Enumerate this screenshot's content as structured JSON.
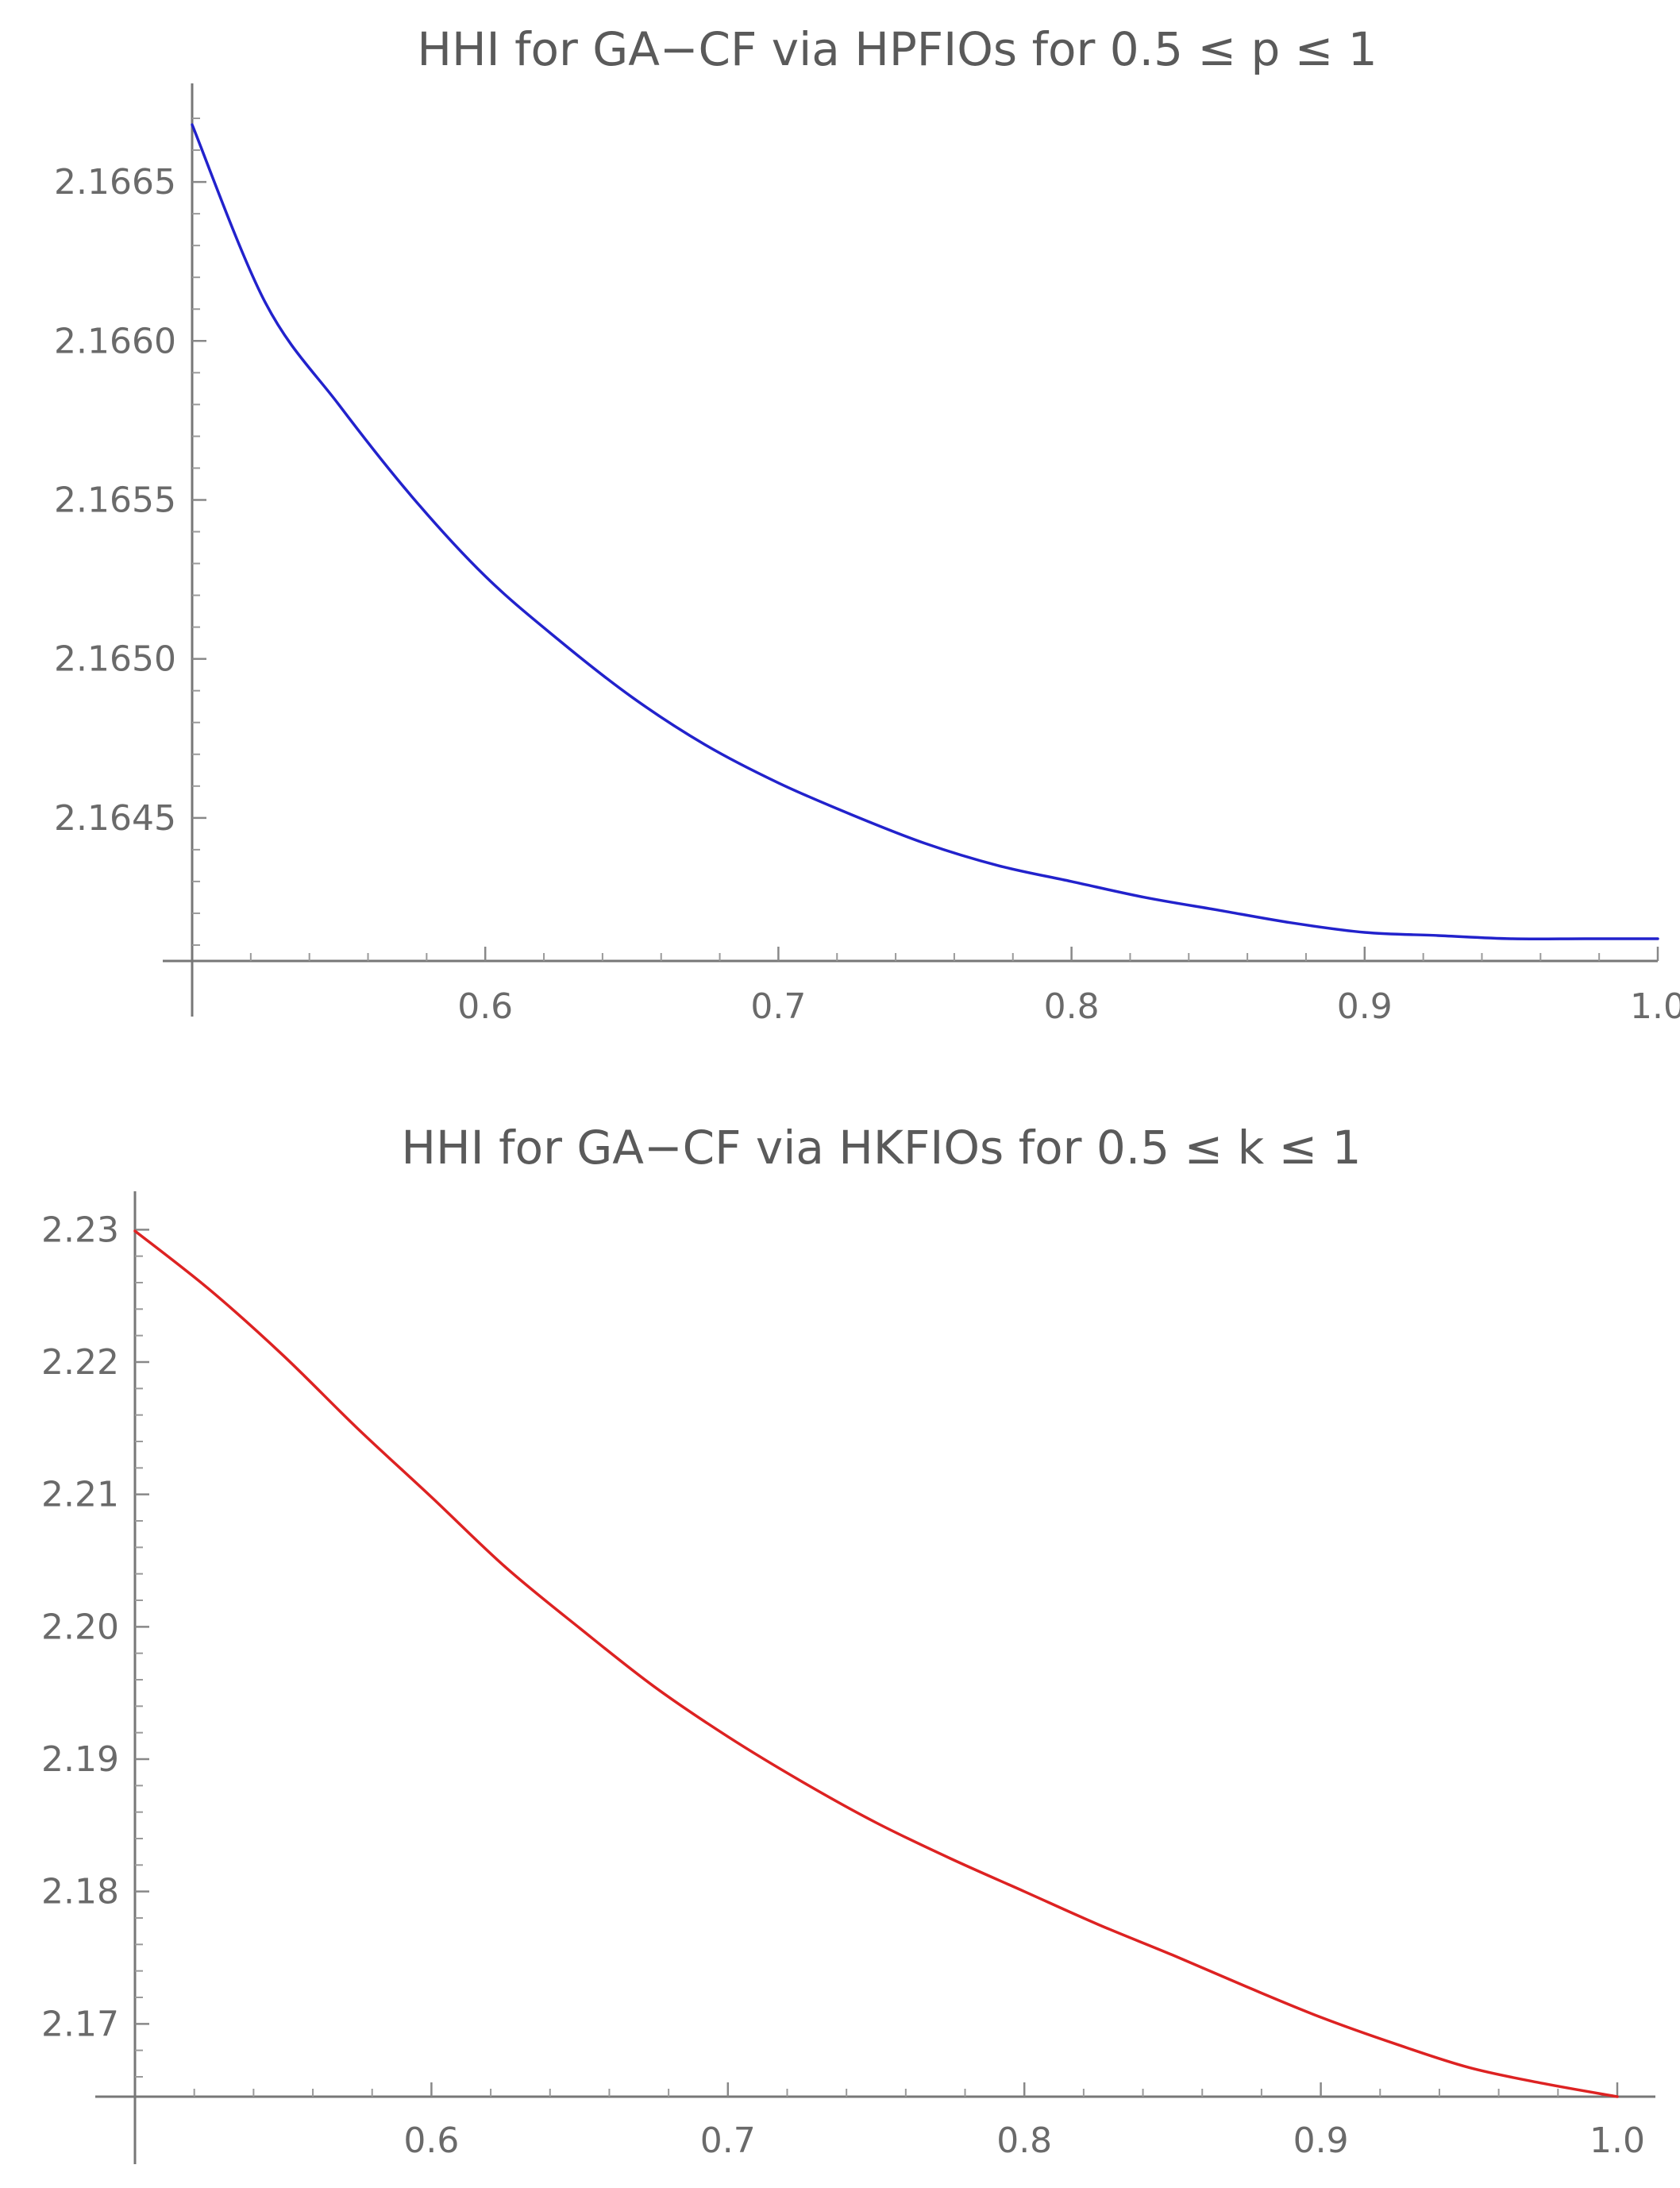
{
  "chart_data": [
    {
      "type": "line",
      "title": "HHI for GA−CF via HPFIOs for 0.5 ≤ p ≤ 1",
      "xlabel": "",
      "ylabel": "",
      "xlim": [
        0.5,
        1.0
      ],
      "ylim": [
        2.16405,
        2.16671
      ],
      "x_ticks": [
        0.6,
        0.7,
        0.8,
        0.9,
        1.0
      ],
      "x_tick_labels": [
        "0.6",
        "0.7",
        "0.8",
        "0.9",
        "1.0"
      ],
      "y_ticks": [
        2.1645,
        2.165,
        2.1655,
        2.166,
        2.1665
      ],
      "y_tick_labels": [
        "2.1645",
        "2.1650",
        "2.1655",
        "2.1660",
        "2.1665"
      ],
      "grid": false,
      "series": [
        {
          "color": "#2222cc",
          "x": [
            0.5,
            0.525,
            0.55,
            0.575,
            0.6,
            0.625,
            0.65,
            0.675,
            0.7,
            0.725,
            0.75,
            0.775,
            0.8,
            0.825,
            0.85,
            0.875,
            0.9,
            0.925,
            0.95,
            0.975,
            1.0
          ],
          "y": [
            2.16668,
            2.16612,
            2.1658,
            2.16551,
            2.16526,
            2.16506,
            2.16488,
            2.16473,
            2.16461,
            2.16451,
            2.16442,
            2.16435,
            2.1643,
            2.16425,
            2.16421,
            2.16417,
            2.16414,
            2.16413,
            2.16412,
            2.16412,
            2.16412
          ]
        }
      ]
    },
    {
      "type": "line",
      "title": "HHI for GA−CF via HKFIOs for 0.5 ≤ k ≤ 1",
      "xlabel": "",
      "ylabel": "",
      "xlim": [
        0.5,
        1.0
      ],
      "ylim": [
        2.1645,
        2.2305
      ],
      "x_ticks": [
        0.6,
        0.7,
        0.8,
        0.9,
        1.0
      ],
      "x_tick_labels": [
        "0.6",
        "0.7",
        "0.8",
        "0.9",
        "1.0"
      ],
      "y_ticks": [
        2.17,
        2.18,
        2.19,
        2.2,
        2.21,
        2.22,
        2.23
      ],
      "y_tick_labels": [
        "2.17",
        "2.18",
        "2.19",
        "2.20",
        "2.21",
        "2.22",
        "2.23"
      ],
      "grid": false,
      "series": [
        {
          "color": "#dd2222",
          "x": [
            0.5,
            0.525,
            0.55,
            0.575,
            0.6,
            0.625,
            0.65,
            0.675,
            0.7,
            0.725,
            0.75,
            0.775,
            0.8,
            0.825,
            0.85,
            0.875,
            0.9,
            0.925,
            0.95,
            0.975,
            1.0
          ],
          "y": [
            2.2299,
            2.2255,
            2.2205,
            2.215,
            2.2098,
            2.2045,
            2.1999,
            2.1955,
            2.1917,
            2.1883,
            2.1852,
            2.1825,
            2.18,
            2.1775,
            2.1752,
            2.1728,
            2.1705,
            2.1685,
            2.1667,
            2.1655,
            2.1645
          ]
        }
      ]
    }
  ]
}
